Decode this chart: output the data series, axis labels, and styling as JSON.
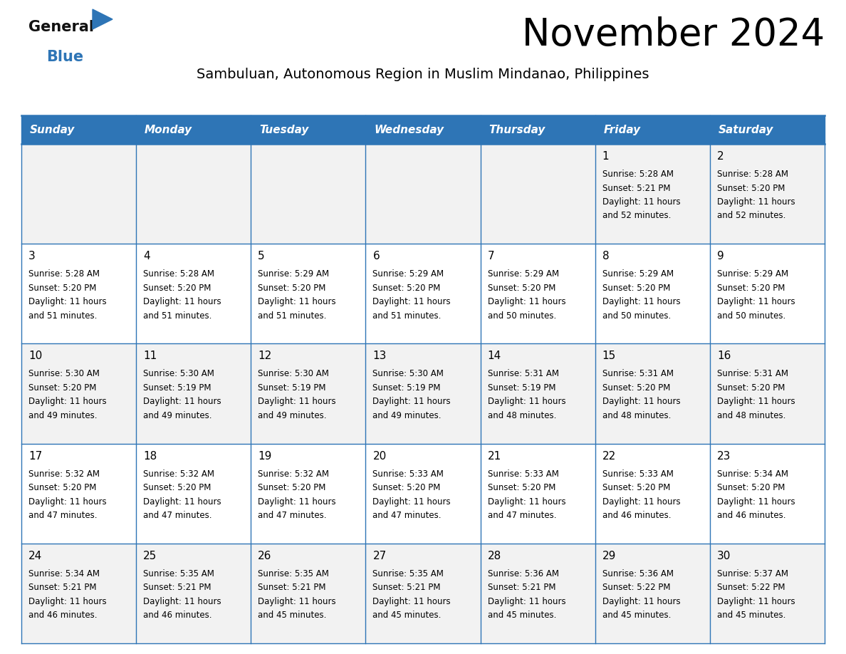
{
  "title": "November 2024",
  "subtitle": "Sambuluan, Autonomous Region in Muslim Mindanao, Philippines",
  "header_color": "#2E75B6",
  "header_text_color": "#FFFFFF",
  "day_names": [
    "Sunday",
    "Monday",
    "Tuesday",
    "Wednesday",
    "Thursday",
    "Friday",
    "Saturday"
  ],
  "row_bg_colors": [
    "#F2F2F2",
    "#FFFFFF"
  ],
  "border_color": "#2E75B6",
  "text_color": "#222222",
  "calendar_data": [
    [
      {
        "day": "",
        "sunrise": "",
        "sunset": "",
        "daylight": ""
      },
      {
        "day": "",
        "sunrise": "",
        "sunset": "",
        "daylight": ""
      },
      {
        "day": "",
        "sunrise": "",
        "sunset": "",
        "daylight": ""
      },
      {
        "day": "",
        "sunrise": "",
        "sunset": "",
        "daylight": ""
      },
      {
        "day": "",
        "sunrise": "",
        "sunset": "",
        "daylight": ""
      },
      {
        "day": "1",
        "sunrise": "5:28 AM",
        "sunset": "5:21 PM",
        "daylight": "11 hours and 52 minutes."
      },
      {
        "day": "2",
        "sunrise": "5:28 AM",
        "sunset": "5:20 PM",
        "daylight": "11 hours and 52 minutes."
      }
    ],
    [
      {
        "day": "3",
        "sunrise": "5:28 AM",
        "sunset": "5:20 PM",
        "daylight": "11 hours and 51 minutes."
      },
      {
        "day": "4",
        "sunrise": "5:28 AM",
        "sunset": "5:20 PM",
        "daylight": "11 hours and 51 minutes."
      },
      {
        "day": "5",
        "sunrise": "5:29 AM",
        "sunset": "5:20 PM",
        "daylight": "11 hours and 51 minutes."
      },
      {
        "day": "6",
        "sunrise": "5:29 AM",
        "sunset": "5:20 PM",
        "daylight": "11 hours and 51 minutes."
      },
      {
        "day": "7",
        "sunrise": "5:29 AM",
        "sunset": "5:20 PM",
        "daylight": "11 hours and 50 minutes."
      },
      {
        "day": "8",
        "sunrise": "5:29 AM",
        "sunset": "5:20 PM",
        "daylight": "11 hours and 50 minutes."
      },
      {
        "day": "9",
        "sunrise": "5:29 AM",
        "sunset": "5:20 PM",
        "daylight": "11 hours and 50 minutes."
      }
    ],
    [
      {
        "day": "10",
        "sunrise": "5:30 AM",
        "sunset": "5:20 PM",
        "daylight": "11 hours and 49 minutes."
      },
      {
        "day": "11",
        "sunrise": "5:30 AM",
        "sunset": "5:19 PM",
        "daylight": "11 hours and 49 minutes."
      },
      {
        "day": "12",
        "sunrise": "5:30 AM",
        "sunset": "5:19 PM",
        "daylight": "11 hours and 49 minutes."
      },
      {
        "day": "13",
        "sunrise": "5:30 AM",
        "sunset": "5:19 PM",
        "daylight": "11 hours and 49 minutes."
      },
      {
        "day": "14",
        "sunrise": "5:31 AM",
        "sunset": "5:19 PM",
        "daylight": "11 hours and 48 minutes."
      },
      {
        "day": "15",
        "sunrise": "5:31 AM",
        "sunset": "5:20 PM",
        "daylight": "11 hours and 48 minutes."
      },
      {
        "day": "16",
        "sunrise": "5:31 AM",
        "sunset": "5:20 PM",
        "daylight": "11 hours and 48 minutes."
      }
    ],
    [
      {
        "day": "17",
        "sunrise": "5:32 AM",
        "sunset": "5:20 PM",
        "daylight": "11 hours and 47 minutes."
      },
      {
        "day": "18",
        "sunrise": "5:32 AM",
        "sunset": "5:20 PM",
        "daylight": "11 hours and 47 minutes."
      },
      {
        "day": "19",
        "sunrise": "5:32 AM",
        "sunset": "5:20 PM",
        "daylight": "11 hours and 47 minutes."
      },
      {
        "day": "20",
        "sunrise": "5:33 AM",
        "sunset": "5:20 PM",
        "daylight": "11 hours and 47 minutes."
      },
      {
        "day": "21",
        "sunrise": "5:33 AM",
        "sunset": "5:20 PM",
        "daylight": "11 hours and 47 minutes."
      },
      {
        "day": "22",
        "sunrise": "5:33 AM",
        "sunset": "5:20 PM",
        "daylight": "11 hours and 46 minutes."
      },
      {
        "day": "23",
        "sunrise": "5:34 AM",
        "sunset": "5:20 PM",
        "daylight": "11 hours and 46 minutes."
      }
    ],
    [
      {
        "day": "24",
        "sunrise": "5:34 AM",
        "sunset": "5:21 PM",
        "daylight": "11 hours and 46 minutes."
      },
      {
        "day": "25",
        "sunrise": "5:35 AM",
        "sunset": "5:21 PM",
        "daylight": "11 hours and 46 minutes."
      },
      {
        "day": "26",
        "sunrise": "5:35 AM",
        "sunset": "5:21 PM",
        "daylight": "11 hours and 45 minutes."
      },
      {
        "day": "27",
        "sunrise": "5:35 AM",
        "sunset": "5:21 PM",
        "daylight": "11 hours and 45 minutes."
      },
      {
        "day": "28",
        "sunrise": "5:36 AM",
        "sunset": "5:21 PM",
        "daylight": "11 hours and 45 minutes."
      },
      {
        "day": "29",
        "sunrise": "5:36 AM",
        "sunset": "5:22 PM",
        "daylight": "11 hours and 45 minutes."
      },
      {
        "day": "30",
        "sunrise": "5:37 AM",
        "sunset": "5:22 PM",
        "daylight": "11 hours and 45 minutes."
      }
    ]
  ],
  "logo_general_color": "#111111",
  "logo_blue_color": "#2E75B6",
  "logo_triangle_color": "#2E75B6",
  "title_fontsize": 38,
  "subtitle_fontsize": 14,
  "header_fontsize": 11,
  "day_num_fontsize": 11,
  "cell_text_fontsize": 8.5
}
